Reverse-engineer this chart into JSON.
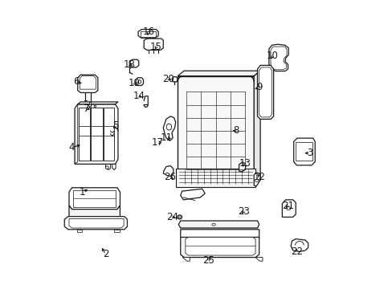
{
  "background_color": "#ffffff",
  "fig_width": 4.89,
  "fig_height": 3.6,
  "dpi": 100,
  "line_color": "#1a1a1a",
  "line_width": 0.9,
  "label_fontsize": 8.5,
  "parts_labels": {
    "1": [
      0.105,
      0.335,
      0.13,
      0.348,
      "right"
    ],
    "2": [
      0.185,
      0.118,
      0.168,
      0.148,
      "right"
    ],
    "3": [
      0.895,
      0.47,
      0.868,
      0.47,
      "right"
    ],
    "4": [
      0.068,
      0.49,
      0.105,
      0.5,
      "right"
    ],
    "5": [
      0.218,
      0.565,
      0.212,
      0.555,
      "left"
    ],
    "6": [
      0.082,
      0.718,
      0.11,
      0.71,
      "right"
    ],
    "7": [
      0.118,
      0.625,
      0.138,
      0.618,
      "right"
    ],
    "8": [
      0.638,
      0.548,
      0.618,
      0.548,
      "right"
    ],
    "9": [
      0.718,
      0.698,
      0.695,
      0.69,
      "right"
    ],
    "10": [
      0.765,
      0.808,
      0.755,
      0.79,
      "right"
    ],
    "11": [
      0.395,
      0.525,
      0.42,
      0.518,
      "right"
    ],
    "12": [
      0.718,
      0.388,
      0.71,
      0.405,
      "right"
    ],
    "13": [
      0.668,
      0.435,
      0.66,
      0.422,
      "right"
    ],
    "14": [
      0.302,
      0.668,
      0.318,
      0.66,
      "right"
    ],
    "15": [
      0.36,
      0.838,
      0.355,
      0.822,
      "left"
    ],
    "16": [
      0.335,
      0.892,
      0.33,
      0.878,
      "left"
    ],
    "17": [
      0.365,
      0.508,
      0.388,
      0.505,
      "right"
    ],
    "18": [
      0.268,
      0.778,
      0.285,
      0.768,
      "right"
    ],
    "19": [
      0.285,
      0.712,
      0.298,
      0.702,
      "right"
    ],
    "20": [
      0.402,
      0.728,
      0.42,
      0.722,
      "right"
    ],
    "21": [
      0.818,
      0.288,
      0.805,
      0.275,
      "left"
    ],
    "22": [
      0.848,
      0.128,
      0.845,
      0.148,
      "left"
    ],
    "23": [
      0.665,
      0.268,
      0.652,
      0.255,
      "left"
    ],
    "24": [
      0.418,
      0.248,
      0.435,
      0.245,
      "right"
    ],
    "25": [
      0.542,
      0.098,
      0.555,
      0.112,
      "right"
    ],
    "26": [
      0.408,
      0.388,
      0.428,
      0.375,
      "right"
    ]
  }
}
